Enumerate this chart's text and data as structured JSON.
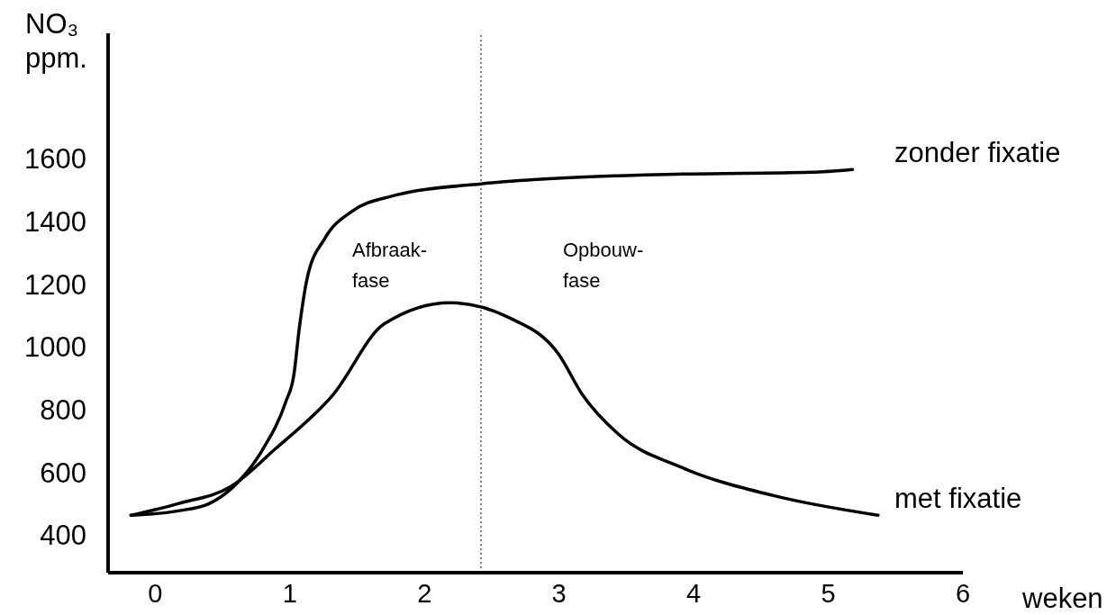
{
  "chart_data": {
    "type": "line",
    "ylabel": "NO₃\nppm.",
    "xlabel": "weken",
    "xlim": [
      -0.35,
      6
    ],
    "xticks": [
      0,
      1,
      2,
      3,
      4,
      5,
      6
    ],
    "ylim": [
      280,
      2000
    ],
    "yticks": [
      400,
      600,
      800,
      1000,
      1200,
      1400,
      1600
    ],
    "grid": false,
    "marker": "none",
    "line_style": "solid",
    "series": [
      {
        "name": "zonder fixatie",
        "color": "#000000",
        "x": [
          -0.18,
          0.17,
          0.4,
          0.6,
          0.8,
          0.97,
          1.03,
          1.07,
          1.13,
          1.26,
          1.46,
          1.75,
          2.42,
          2.84,
          3.92,
          4.87,
          5.18
        ],
        "values": [
          463,
          477,
          500,
          562,
          674,
          825,
          910,
          1058,
          1221,
          1346,
          1432,
          1480,
          1520,
          1534,
          1551,
          1557,
          1566
        ]
      },
      {
        "name": "met fixatie",
        "color": "#000000",
        "x": [
          -0.18,
          0.17,
          0.57,
          0.89,
          1.32,
          1.7,
          2.19,
          2.62,
          3.0,
          3.17,
          3.44,
          3.92,
          4.6,
          5.37
        ],
        "values": [
          463,
          500,
          557,
          674,
          847,
          1073,
          1141,
          1095,
          975,
          850,
          722,
          614,
          525,
          463
        ]
      }
    ],
    "ref_lines": [
      {
        "axis": "x",
        "value": 2.42,
        "line_style": "dotted",
        "color": "#000000"
      }
    ],
    "annotations": [
      "Afbraak-\nfase",
      "Opbouw-\nfase"
    ]
  }
}
